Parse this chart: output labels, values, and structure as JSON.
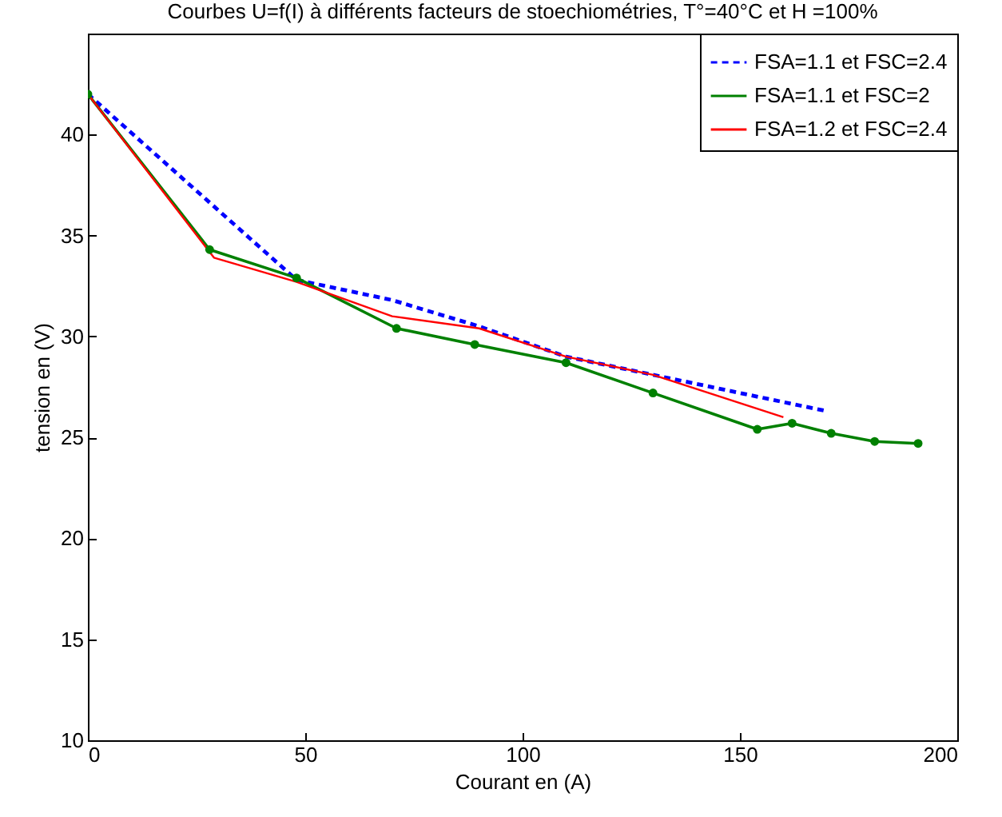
{
  "chart_data": {
    "type": "line",
    "title": "Courbes U=f(I) à différents facteurs de stoechiométries, T°=40°C et H =100%",
    "xlabel": "Courant en (A)",
    "ylabel": "tension en (V)",
    "xlim": [
      0,
      200
    ],
    "xticks": [
      0,
      50,
      100,
      150,
      200
    ],
    "ylim": [
      10,
      45
    ],
    "yticks": [
      10,
      15,
      20,
      25,
      30,
      35,
      40
    ],
    "grid": false,
    "legend": "top right",
    "series": [
      {
        "name": "FSA=1.1 et FSC=2.4",
        "color": "#0000ff",
        "line_style": "dashed",
        "marker": "none",
        "x": [
          0,
          48,
          70,
          90,
          110,
          130,
          170
        ],
        "values": [
          42,
          32.8,
          31.8,
          30.5,
          29,
          28.1,
          26.3
        ]
      },
      {
        "name": "FSA=1.1 et FSC=2",
        "color": "#008000",
        "line_style": "solid",
        "marker": "circle",
        "x": [
          0,
          28,
          48,
          71,
          89,
          110,
          130,
          154,
          162,
          171,
          181,
          191
        ],
        "values": [
          42,
          34.3,
          32.9,
          30.4,
          29.6,
          28.7,
          27.2,
          25.4,
          25.7,
          25.2,
          24.8,
          24.7
        ]
      },
      {
        "name": "FSA=1.2 et FSC=2.4",
        "color": "#ff0000",
        "line_style": "solid",
        "marker": "none",
        "x": [
          0,
          29,
          48,
          70,
          90,
          110,
          130,
          160
        ],
        "values": [
          42,
          33.9,
          32.7,
          31,
          30.4,
          29,
          28.1,
          26
        ]
      }
    ]
  }
}
